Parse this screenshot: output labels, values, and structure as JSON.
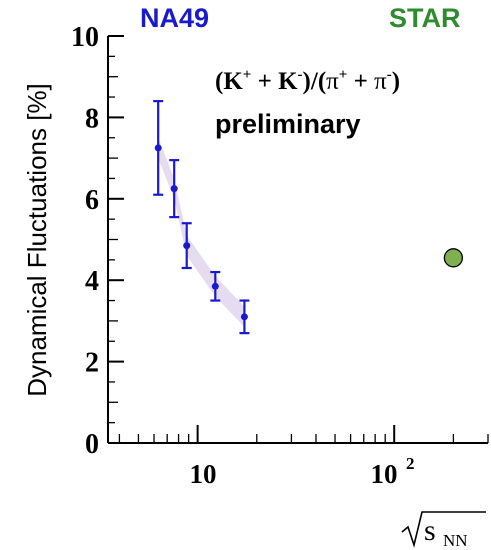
{
  "chart_data": {
    "type": "scatter",
    "ylabel": "Dynamical Fluctuations [%]",
    "ylim": [
      0,
      10
    ],
    "yticks": [
      "0",
      "2",
      "4",
      "6",
      "8",
      "10"
    ],
    "x_scale": "log",
    "xlim": [
      3.5,
      300
    ],
    "xtick_labels": {
      "ten": "10",
      "hundred_base": "10",
      "hundred_exp": "2"
    },
    "xlabel": {
      "main": "s",
      "sub": "NN"
    },
    "annotation": {
      "K": "K",
      "plus": "+",
      "minus": "-",
      "pi": "π",
      "formula_open": "(",
      "formula_mid": ")/(",
      "formula_close": ")",
      "op": " + "
    },
    "preliminary": "preliminary",
    "series": [
      {
        "name": "NA49",
        "color": "#1a1acc",
        "points": [
          {
            "x": 6.3,
            "y": 7.25,
            "err": 1.15
          },
          {
            "x": 7.6,
            "y": 6.25,
            "err": 0.7
          },
          {
            "x": 8.8,
            "y": 4.85,
            "err": 0.55
          },
          {
            "x": 12.3,
            "y": 3.85,
            "err": 0.35
          },
          {
            "x": 17.3,
            "y": 3.1,
            "err": 0.4
          }
        ],
        "band_color": "#e6dcf0"
      },
      {
        "name": "STAR",
        "color": "#2e8b2e",
        "marker_color": "#7fb04f",
        "points": [
          {
            "x": 200,
            "y": 4.55
          }
        ]
      }
    ]
  }
}
